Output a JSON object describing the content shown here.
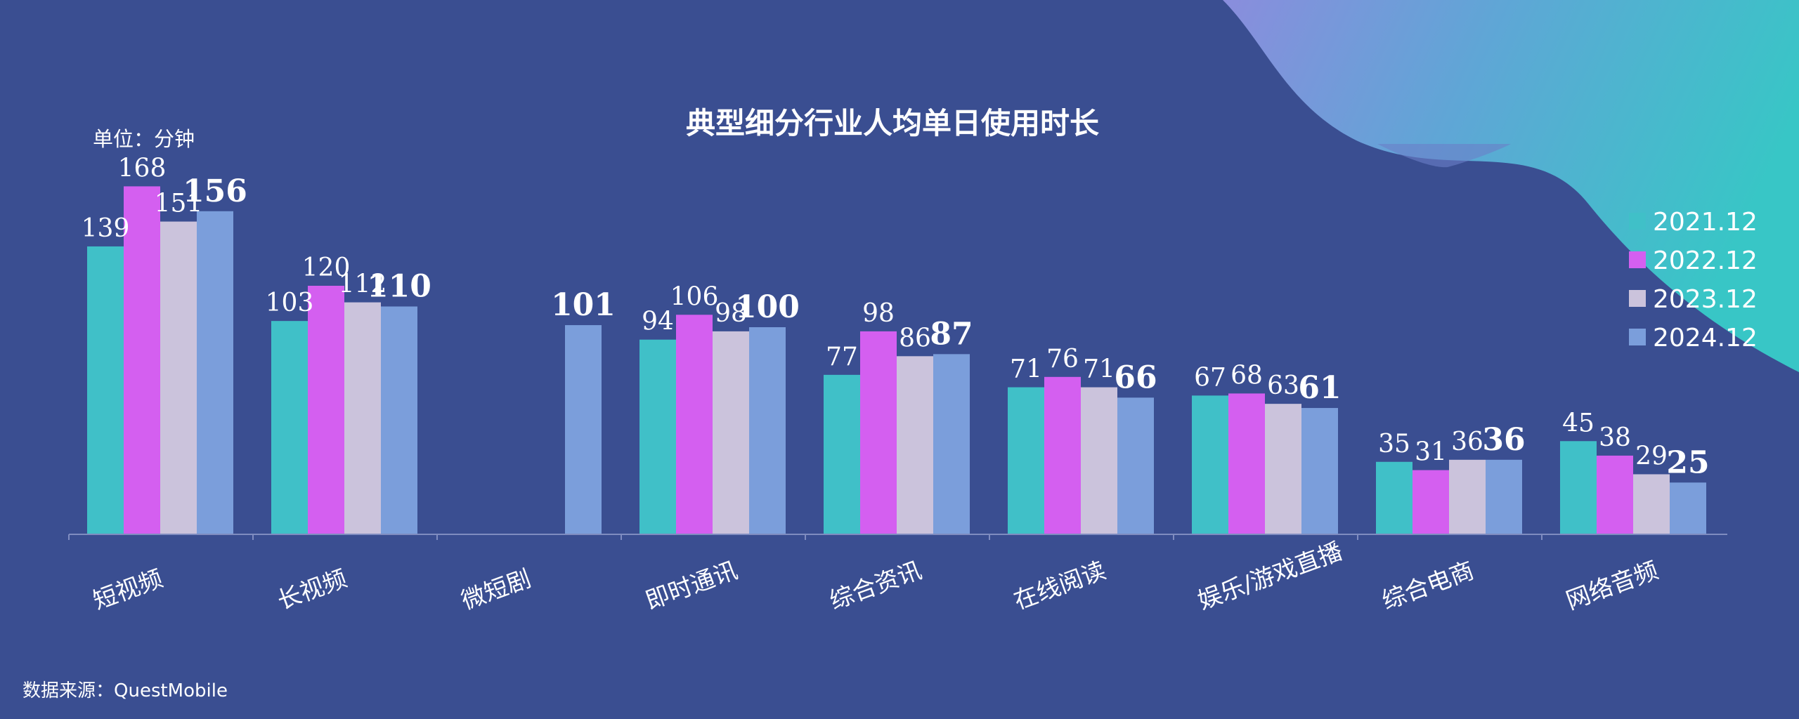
{
  "chart_data": {
    "type": "bar",
    "title": "典型细分行业人均单日使用时长",
    "unit_label": "单位：分钟",
    "source": "数据来源：QuestMobile",
    "categories": [
      "短视频",
      "长视频",
      "微短剧",
      "即时通讯",
      "综合资讯",
      "在线阅读",
      "娱乐/游戏直播",
      "综合电商",
      "网络音频"
    ],
    "series": [
      {
        "name": "2021.12",
        "color": "#40c0c8",
        "values": [
          139,
          103,
          null,
          94,
          77,
          71,
          67,
          35,
          45
        ]
      },
      {
        "name": "2022.12",
        "color": "#d45ff0",
        "values": [
          168,
          120,
          null,
          106,
          98,
          76,
          68,
          31,
          38
        ]
      },
      {
        "name": "2023.12",
        "color": "#cbc3dc",
        "values": [
          151,
          112,
          null,
          98,
          86,
          71,
          63,
          36,
          29
        ]
      },
      {
        "name": "2024.12",
        "color": "#7b9edb",
        "values": [
          156,
          110,
          101,
          100,
          87,
          66,
          61,
          36,
          25
        ]
      }
    ],
    "xlabel": "",
    "ylabel": "",
    "ylim": [
      0,
      180
    ],
    "grid": false,
    "legend": "right"
  }
}
